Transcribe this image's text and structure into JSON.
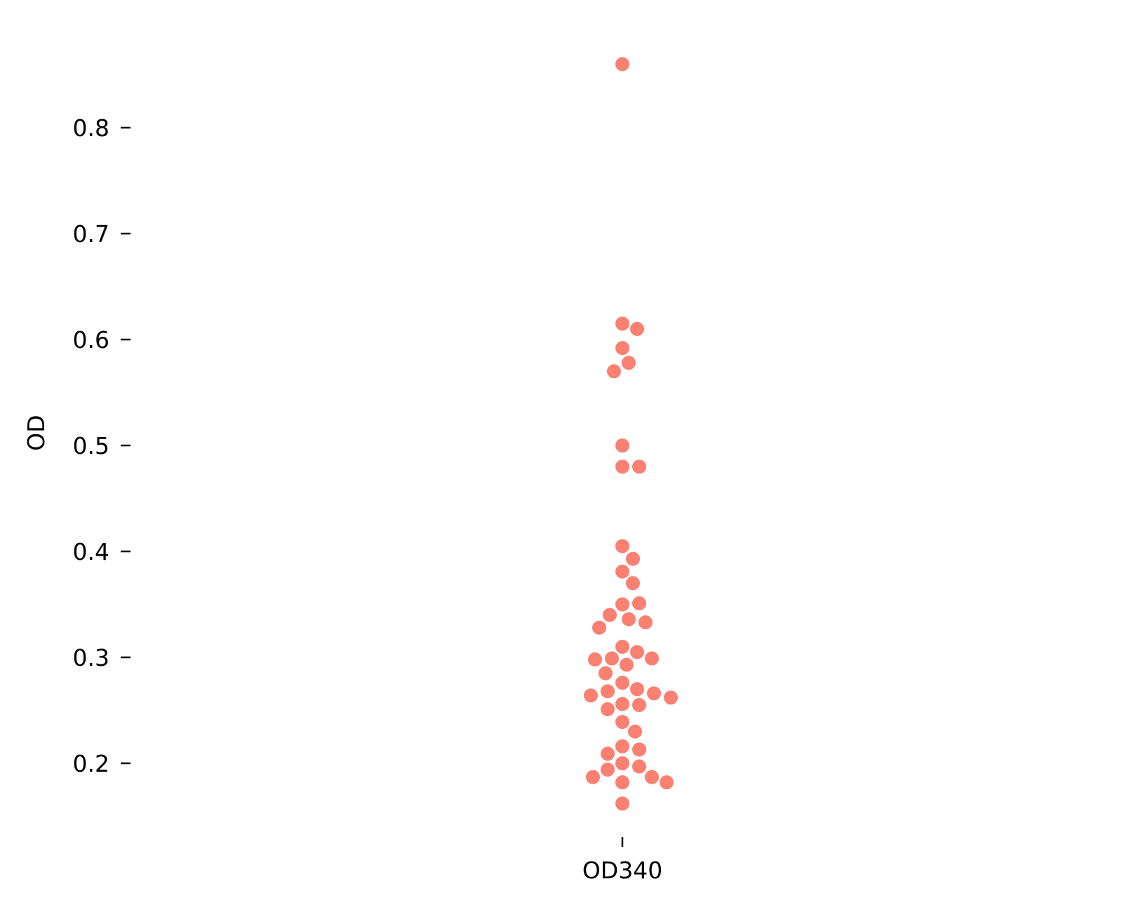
{
  "chart_data": {
    "type": "scatter",
    "subtype": "swarm",
    "title": "",
    "xlabel": "",
    "ylabel": "OD",
    "categories": [
      "OD340"
    ],
    "yticks": [
      0.2,
      0.3,
      0.4,
      0.5,
      0.6,
      0.7,
      0.8
    ],
    "ytick_labels": [
      "0.2",
      "0.3",
      "0.4",
      "0.5",
      "0.6",
      "0.7",
      "0.8"
    ],
    "ylim": [
      0.13,
      0.89
    ],
    "grid": false,
    "legend": "none",
    "marker_color": "#fa8072",
    "series": [
      {
        "category": "OD340",
        "values": [
          0.86,
          0.615,
          0.61,
          0.592,
          0.578,
          0.57,
          0.5,
          0.48,
          0.48,
          0.405,
          0.393,
          0.381,
          0.37,
          0.35,
          0.351,
          0.34,
          0.336,
          0.333,
          0.328,
          0.31,
          0.305,
          0.299,
          0.298,
          0.299,
          0.293,
          0.285,
          0.276,
          0.27,
          0.268,
          0.266,
          0.264,
          0.262,
          0.256,
          0.255,
          0.251,
          0.239,
          0.23,
          0.216,
          0.213,
          0.209,
          0.2,
          0.197,
          0.194,
          0.187,
          0.187,
          0.182,
          0.182,
          0.162
        ]
      }
    ]
  }
}
